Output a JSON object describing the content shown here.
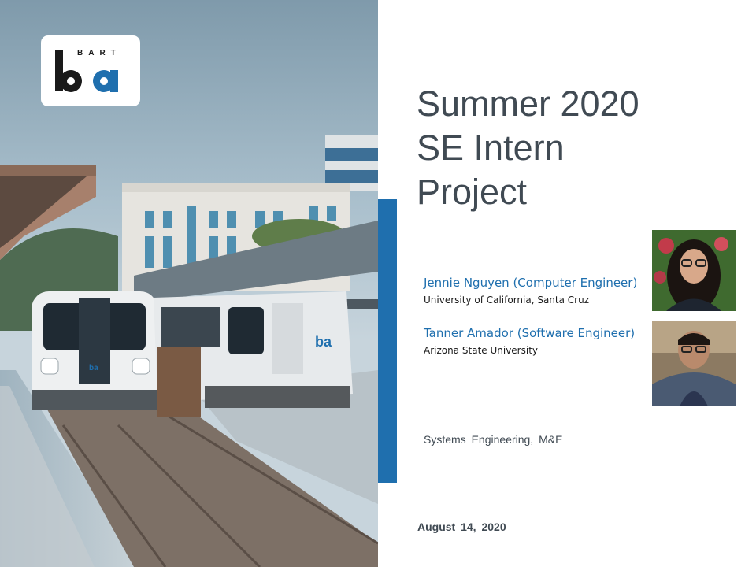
{
  "logo": {
    "wordmark": "BART",
    "icon": "bart-logo-icon"
  },
  "title": {
    "line1": "Summer 2020",
    "line2": "SE Intern",
    "line3": "Project"
  },
  "people": [
    {
      "name": "Jennie Nguyen (Computer Engineer)",
      "school": "University of California, Santa Cruz",
      "photo": "headshot-photo"
    },
    {
      "name": "Tanner Amador (Software Engineer)",
      "school": "Arizona State University",
      "photo": "headshot-photo"
    }
  ],
  "department": "Systems Engineering, M&E",
  "date": "August 14, 2020",
  "colors": {
    "accent": "#1f6fae",
    "title_text": "#404a53",
    "sky": "#a9bfcc"
  }
}
